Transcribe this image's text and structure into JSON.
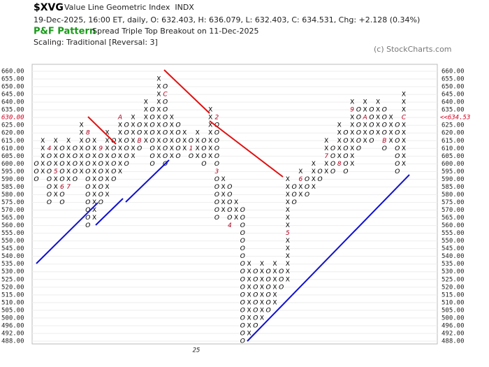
{
  "chart_data": {
    "type": "point-and-figure",
    "symbol": "$XVG",
    "name": "Value Line Geometric Index  INDX",
    "quote": "19-Dec-2025, 16:00 ET, daily, O: 632.403, H: 636.079, L: 632.403, C: 634.531, Chg: +2.128 (0.34%)",
    "pattern_title": "P&F Pattern",
    "pattern": "Spread Triple Top Breakout on 11-Dec-2025",
    "scaling": "Scaling: Traditional [Reversal: 3]",
    "copyright": "(c) StockCharts.com",
    "x_label": "25",
    "last_box": 630,
    "last_price_label": "<<634.53",
    "yticks": [
      {
        "value": 660,
        "label": "660.00"
      },
      {
        "value": 655,
        "label": "655.00"
      },
      {
        "value": 650,
        "label": "650.00"
      },
      {
        "value": 645,
        "label": "645.00"
      },
      {
        "value": 640,
        "label": "640.00"
      },
      {
        "value": 635,
        "label": "635.00"
      },
      {
        "value": 630,
        "label": "630.00"
      },
      {
        "value": 625,
        "label": "625.00"
      },
      {
        "value": 620,
        "label": "620.00"
      },
      {
        "value": 615,
        "label": "615.00"
      },
      {
        "value": 610,
        "label": "610.00"
      },
      {
        "value": 605,
        "label": "605.00"
      },
      {
        "value": 600,
        "label": "600.00"
      },
      {
        "value": 595,
        "label": "595.00"
      },
      {
        "value": 590,
        "label": "590.00"
      },
      {
        "value": 585,
        "label": "585.00"
      },
      {
        "value": 580,
        "label": "580.00"
      },
      {
        "value": 575,
        "label": "575.00"
      },
      {
        "value": 570,
        "label": "570.00"
      },
      {
        "value": 565,
        "label": "565.00"
      },
      {
        "value": 560,
        "label": "560.00"
      },
      {
        "value": 555,
        "label": "555.00"
      },
      {
        "value": 550,
        "label": "550.00"
      },
      {
        "value": 545,
        "label": "545.00"
      },
      {
        "value": 540,
        "label": "540.00"
      },
      {
        "value": 535,
        "label": "535.00"
      },
      {
        "value": 530,
        "label": "530.00"
      },
      {
        "value": 525,
        "label": "525.00"
      },
      {
        "value": 520,
        "label": "520.00"
      },
      {
        "value": 515,
        "label": "515.00"
      },
      {
        "value": 510,
        "label": "510.00"
      },
      {
        "value": 505,
        "label": "505.00"
      },
      {
        "value": 500,
        "label": "500.00"
      },
      {
        "value": 496,
        "label": "496.00"
      },
      {
        "value": 492,
        "label": "492.00"
      },
      {
        "value": 488,
        "label": "488.00"
      }
    ],
    "columns": [
      {
        "kind": "O",
        "low": 590,
        "high": 600
      },
      {
        "kind": "X",
        "low": 595,
        "high": 615
      },
      {
        "kind": "O",
        "low": 575,
        "high": 610,
        "months": [
          {
            "value": 610,
            "label": "4"
          }
        ]
      },
      {
        "kind": "X",
        "low": 580,
        "high": 615,
        "months": [
          {
            "value": 595,
            "label": "5"
          }
        ]
      },
      {
        "kind": "O",
        "low": 575,
        "high": 610,
        "months": [
          {
            "value": 585,
            "label": "6"
          }
        ]
      },
      {
        "kind": "X",
        "low": 585,
        "high": 615,
        "months": [
          {
            "value": 585,
            "label": "7"
          }
        ]
      },
      {
        "kind": "O",
        "low": 590,
        "high": 610
      },
      {
        "kind": "X",
        "low": 595,
        "high": 625
      },
      {
        "kind": "O",
        "low": 560,
        "high": 620,
        "months": [
          {
            "value": 620,
            "label": "8"
          }
        ]
      },
      {
        "kind": "X",
        "low": 565,
        "high": 615
      },
      {
        "kind": "O",
        "low": 575,
        "high": 610,
        "months": [
          {
            "value": 610,
            "label": "9"
          }
        ]
      },
      {
        "kind": "X",
        "low": 580,
        "high": 620
      },
      {
        "kind": "O",
        "low": 590,
        "high": 615
      },
      {
        "kind": "X",
        "low": 595,
        "high": 630,
        "months": [
          {
            "value": 630,
            "label": "A"
          }
        ]
      },
      {
        "kind": "O",
        "low": 600,
        "high": 625
      },
      {
        "kind": "X",
        "low": 605,
        "high": 630
      },
      {
        "kind": "O",
        "low": 610,
        "high": 625,
        "months": [
          {
            "value": 615,
            "label": "B"
          }
        ]
      },
      {
        "kind": "X",
        "low": 615,
        "high": 640
      },
      {
        "kind": "O",
        "low": 600,
        "high": 635
      },
      {
        "kind": "X",
        "low": 605,
        "high": 655
      },
      {
        "kind": "O",
        "low": 600,
        "high": 650,
        "months": [
          {
            "value": 645,
            "label": "C"
          }
        ]
      },
      {
        "kind": "X",
        "low": 605,
        "high": 630
      },
      {
        "kind": "O",
        "low": 605,
        "high": 625
      },
      {
        "kind": "X",
        "low": 610,
        "high": 620
      },
      {
        "kind": "O",
        "low": 605,
        "high": 615,
        "months": [
          {
            "value": 610,
            "label": "1"
          }
        ]
      },
      {
        "kind": "X",
        "low": 605,
        "high": 620
      },
      {
        "kind": "O",
        "low": 600,
        "high": 615
      },
      {
        "kind": "X",
        "low": 605,
        "high": 635
      },
      {
        "kind": "O",
        "low": 565,
        "high": 630,
        "months": [
          {
            "value": 630,
            "label": "2"
          },
          {
            "value": 595,
            "label": "3"
          }
        ]
      },
      {
        "kind": "X",
        "low": 570,
        "high": 590
      },
      {
        "kind": "O",
        "low": 560,
        "high": 585,
        "months": [
          {
            "value": 560,
            "label": "4"
          }
        ]
      },
      {
        "kind": "X",
        "low": 565,
        "high": 575
      },
      {
        "kind": "O",
        "low": 488,
        "high": 570
      },
      {
        "kind": "X",
        "low": 492,
        "high": 535
      },
      {
        "kind": "O",
        "low": 496,
        "high": 530
      },
      {
        "kind": "X",
        "low": 500,
        "high": 535
      },
      {
        "kind": "O",
        "low": 505,
        "high": 530
      },
      {
        "kind": "X",
        "low": 510,
        "high": 535
      },
      {
        "kind": "O",
        "low": 520,
        "high": 530
      },
      {
        "kind": "X",
        "low": 525,
        "high": 590,
        "months": [
          {
            "value": 555,
            "label": "5"
          }
        ]
      },
      {
        "kind": "O",
        "low": 575,
        "high": 585
      },
      {
        "kind": "X",
        "low": 580,
        "high": 595,
        "months": [
          {
            "value": 590,
            "label": "6"
          }
        ]
      },
      {
        "kind": "O",
        "low": 580,
        "high": 590
      },
      {
        "kind": "X",
        "low": 585,
        "high": 600
      },
      {
        "kind": "O",
        "low": 590,
        "high": 595
      },
      {
        "kind": "X",
        "low": 595,
        "high": 615,
        "months": [
          {
            "value": 605,
            "label": "7"
          }
        ]
      },
      {
        "kind": "O",
        "low": 595,
        "high": 610
      },
      {
        "kind": "X",
        "low": 600,
        "high": 625,
        "months": [
          {
            "value": 600,
            "label": "8"
          }
        ]
      },
      {
        "kind": "O",
        "low": 595,
        "high": 620
      },
      {
        "kind": "X",
        "low": 600,
        "high": 640,
        "months": [
          {
            "value": 635,
            "label": "9"
          }
        ]
      },
      {
        "kind": "O",
        "low": 610,
        "high": 635
      },
      {
        "kind": "X",
        "low": 615,
        "high": 640,
        "months": [
          {
            "value": 630,
            "label": "A"
          }
        ]
      },
      {
        "kind": "O",
        "low": 615,
        "high": 635
      },
      {
        "kind": "X",
        "low": 620,
        "high": 640
      },
      {
        "kind": "O",
        "low": 610,
        "high": 635,
        "months": [
          {
            "value": 615,
            "label": "B"
          }
        ]
      },
      {
        "kind": "X",
        "low": 615,
        "high": 630
      },
      {
        "kind": "O",
        "low": 595,
        "high": 625
      },
      {
        "kind": "X",
        "low": 600,
        "high": 645,
        "months": [
          {
            "value": 630,
            "label": "C"
          }
        ]
      }
    ]
  }
}
